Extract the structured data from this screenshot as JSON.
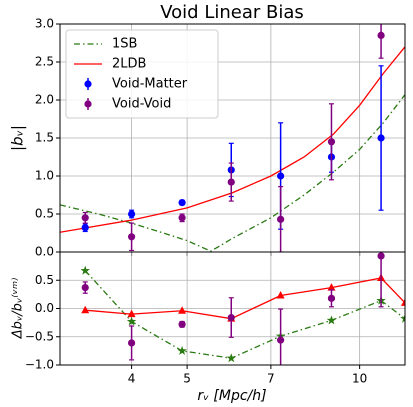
{
  "chart_data": [
    {
      "type": "line",
      "title": "Void Linear Bias",
      "y_label": "|bᵥ|",
      "xscale": "log",
      "xlim": [
        3,
        12
      ],
      "xticks": [
        4,
        5,
        7,
        10
      ],
      "ylim": [
        0,
        3
      ],
      "yticks": [
        {
          "value": 0,
          "label": "0.0"
        },
        {
          "value": 0.5,
          "label": "0.5"
        },
        {
          "value": 1,
          "label": "1.0"
        },
        {
          "value": 1.5,
          "label": "1.5"
        },
        {
          "value": 2,
          "label": "2.0"
        },
        {
          "value": 2.5,
          "label": "2.5"
        },
        {
          "value": 3,
          "label": "3.0"
        }
      ],
      "grid": true,
      "legend": "upper left",
      "series": [
        {
          "name": "1SB",
          "color": "#2a7a12",
          "dash": "dashdot",
          "x": [
            3,
            3.5,
            4,
            4.5,
            5,
            5.5,
            6,
            7,
            8,
            9,
            10,
            11,
            12
          ],
          "values": [
            0.62,
            0.5,
            0.38,
            0.26,
            0.15,
            0.01,
            0.18,
            0.45,
            0.75,
            1.05,
            1.35,
            1.7,
            2.07
          ]
        },
        {
          "name": "2LDB",
          "color": "#ff0000",
          "x": [
            3,
            4,
            5,
            6,
            7,
            8,
            9,
            10,
            11,
            12
          ],
          "values": [
            0.26,
            0.42,
            0.58,
            0.78,
            1.0,
            1.25,
            1.55,
            1.93,
            2.35,
            2.7
          ]
        },
        {
          "name": "Void-Matter",
          "color": "#0000ff",
          "x": [
            3.32,
            4.0,
            4.9,
            5.97,
            7.28,
            8.93,
            10.9
          ],
          "values": [
            0.32,
            0.5,
            0.65,
            1.08,
            1.0,
            1.25,
            1.5
          ],
          "errors": [
            0.05,
            0.05,
            0.03,
            0.35,
            0.7,
            0.2,
            0.95
          ]
        },
        {
          "name": "Void-Void",
          "color": "#800080",
          "x": [
            3.32,
            4.0,
            4.9,
            5.97,
            7.28,
            8.93,
            10.9
          ],
          "values": [
            0.45,
            0.2,
            0.45,
            0.92,
            0.43,
            1.45,
            2.85
          ],
          "errors": [
            0.07,
            0.18,
            0.05,
            0.25,
            0.43,
            0.5,
            0.3
          ]
        }
      ]
    },
    {
      "type": "line",
      "x_label": "rᵥ [Mpc/h]",
      "y_label": "Δbᵥ/bᵥ⁽ᵛᵐ⁾",
      "xscale": "log",
      "xlim": [
        3,
        12
      ],
      "xticks": [
        4,
        5,
        7,
        10
      ],
      "ylim": [
        -1,
        1
      ],
      "yticks": [
        {
          "value": -1,
          "label": "−1.0"
        },
        {
          "value": -0.5,
          "label": "−0.5"
        },
        {
          "value": 0,
          "label": "0.0"
        },
        {
          "value": 0.5,
          "label": "0.5"
        }
      ],
      "grid": true,
      "series": [
        {
          "color": "#2a7a12",
          "dash": "dashdot",
          "marker": "star",
          "x": [
            3.32,
            4.0,
            4.9,
            5.97,
            7.28,
            8.93,
            10.9,
            12
          ],
          "values": [
            0.67,
            -0.23,
            -0.75,
            -0.88,
            -0.49,
            -0.21,
            0.14,
            -0.18
          ]
        },
        {
          "color": "#ff0000",
          "marker": "triangle",
          "x": [
            3.32,
            4.0,
            4.9,
            5.97,
            7.28,
            8.93,
            10.9,
            12
          ],
          "values": [
            -0.03,
            -0.1,
            -0.04,
            -0.18,
            0.23,
            0.37,
            0.54,
            0.1
          ]
        },
        {
          "color": "#800080",
          "x": [
            3.32,
            4.0,
            4.9,
            5.97,
            7.28,
            8.93,
            10.9
          ],
          "values": [
            0.37,
            -0.61,
            -0.28,
            -0.16,
            -0.56,
            0.18,
            0.93
          ],
          "errors": [
            0.1,
            0.3,
            0.05,
            0.35,
            0.55,
            0.15,
            0.9
          ]
        }
      ]
    }
  ]
}
